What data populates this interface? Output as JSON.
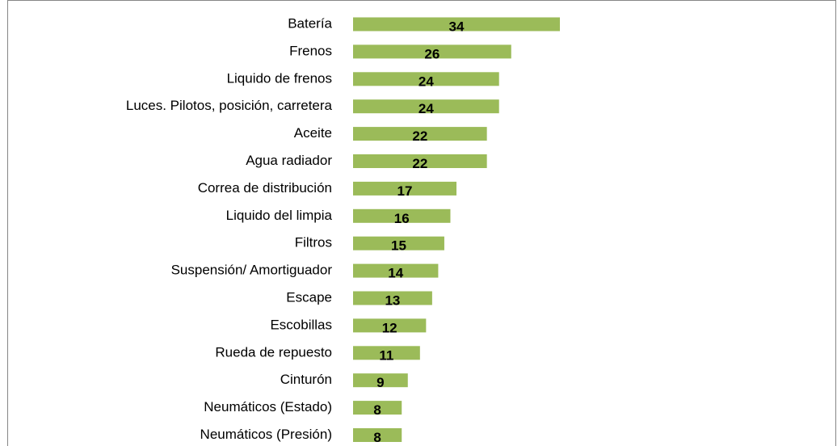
{
  "chart_data": {
    "type": "bar",
    "orientation": "horizontal",
    "categories": [
      "Batería",
      "Frenos",
      "Liquido de frenos",
      "Luces. Pilotos, posición, carretera",
      "Aceite",
      "Agua radiador",
      "Correa de distribución",
      "Liquido del limpia",
      "Filtros",
      "Suspensión/ Amortiguador",
      "Escape",
      "Escobillas",
      "Rueda de repuesto",
      "Cinturón",
      "Neumáticos (Estado)",
      "Neumáticos (Presión)"
    ],
    "values": [
      34,
      26,
      24,
      24,
      22,
      22,
      17,
      16,
      15,
      14,
      13,
      12,
      11,
      9,
      8,
      8
    ],
    "color": "#9bbb59"
  }
}
